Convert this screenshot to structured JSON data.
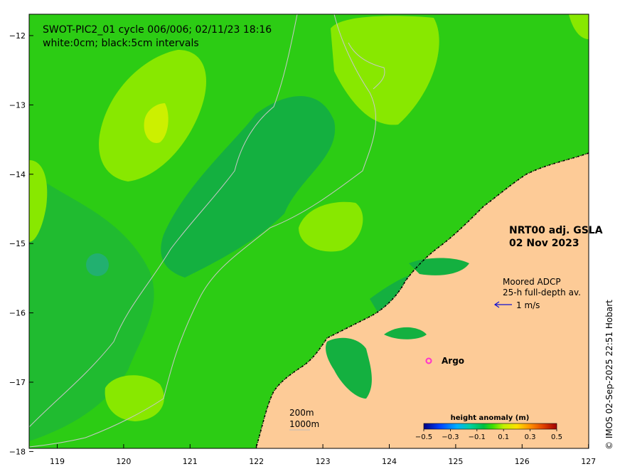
{
  "title": {
    "line1": "SWOT-PIC2_01 cycle 006/006; 02/11/23 18:16",
    "line2": "white:0cm; black:5cm intervals"
  },
  "product": {
    "line1": "NRT00 adj. GSLA",
    "line2": "02 Nov 2023"
  },
  "adcp": {
    "line1": "Moored ADCP",
    "line2": "25-h full-depth av.",
    "scale_label": "1 m/s"
  },
  "argo": {
    "label": "Argo",
    "color": "#ff33cc"
  },
  "isobaths": {
    "shallow": "200m",
    "deep": "1000m"
  },
  "colorbar": {
    "title": "height anomaly (m)",
    "ticks": [
      "−0.5",
      "−0.3",
      "−0.1",
      "0.1",
      "0.3",
      "0.5"
    ],
    "colors": [
      "#000080",
      "#0040ff",
      "#00b0ff",
      "#00d0a0",
      "#00c040",
      "#40e000",
      "#c0f000",
      "#ffe000",
      "#ff9000",
      "#e04000",
      "#a00000"
    ]
  },
  "axes": {
    "x_ticks": [
      "119",
      "120",
      "121",
      "122",
      "123",
      "124",
      "125",
      "126",
      "127"
    ],
    "y_ticks": [
      "−12",
      "−13",
      "−14",
      "−15",
      "−16",
      "−17",
      "−18"
    ]
  },
  "credit": "© IMOS 02-Sep-2025 22:51 Hobart",
  "colors": {
    "base_green": "#22cc22",
    "dark_green": "#11b040",
    "light_green": "#88e800",
    "yellow_green": "#ccf000",
    "land": "#fdcb97",
    "teal": "#22b070"
  }
}
